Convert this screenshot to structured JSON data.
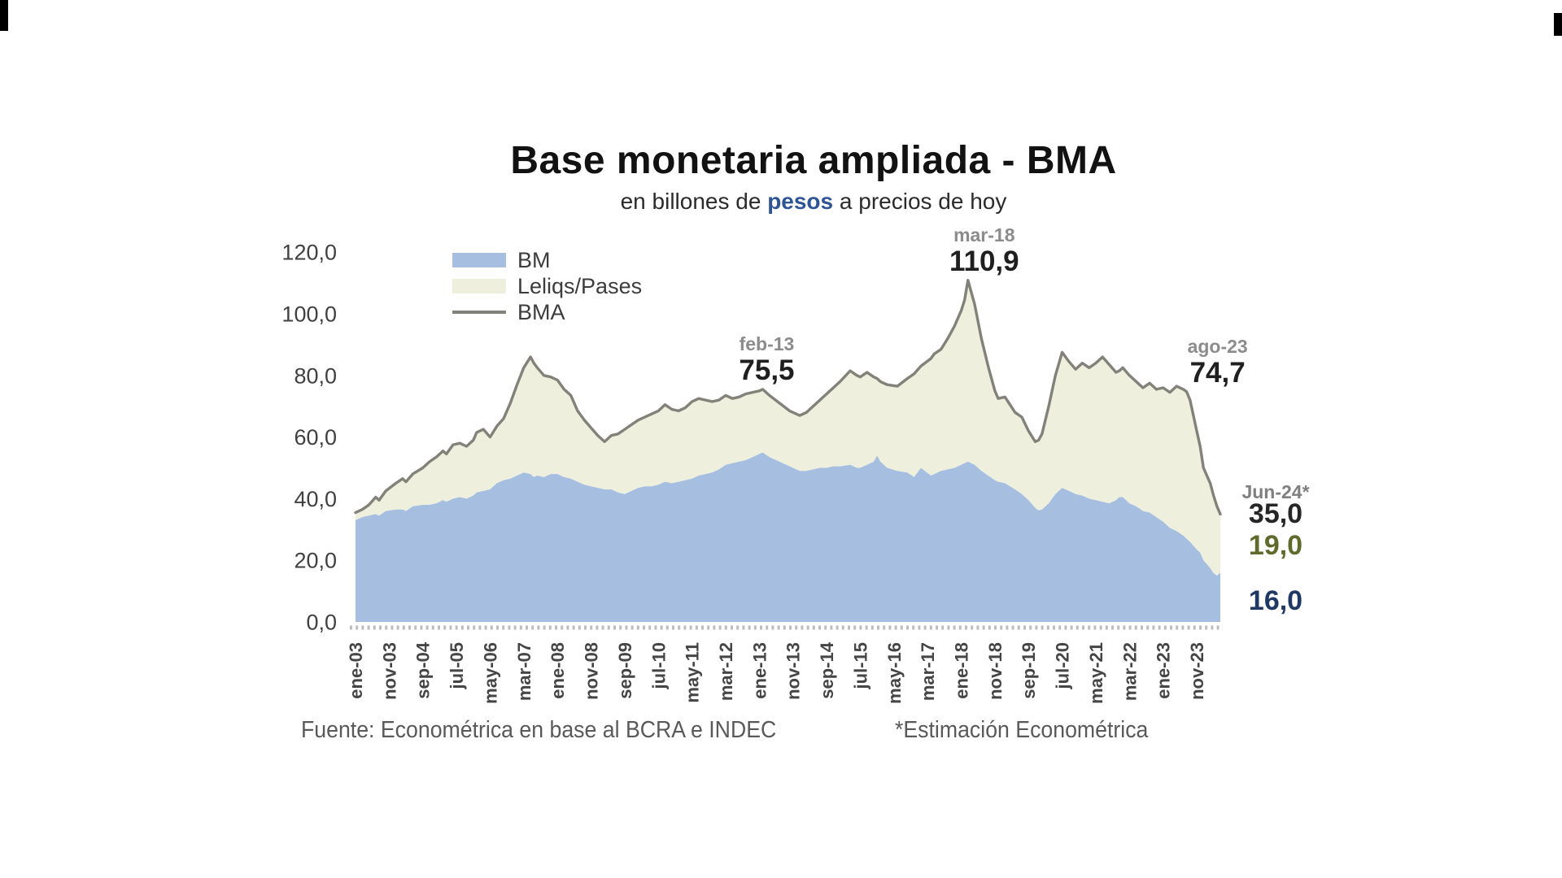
{
  "title": "Base monetaria ampliada - BMA",
  "subtitle": {
    "prefix": "en billones de ",
    "highlight": "pesos",
    "suffix": " a precios de hoy"
  },
  "legend": [
    {
      "label": "BM",
      "type": "area",
      "color": "#a6bfe1"
    },
    {
      "label": "Leliqs/Pases",
      "type": "area",
      "color": "#eef0dd"
    },
    {
      "label": "BMA",
      "type": "line",
      "color": "#82827a"
    }
  ],
  "footer": {
    "source": "Fuente: Econométrica en base al BCRA e INDEC",
    "estimation_note": "*Estimación Econométrica"
  },
  "chart_data": {
    "type": "area",
    "stacked": true,
    "title": "Base monetaria ampliada - BMA",
    "subtitle": "en billones de pesos a precios de hoy",
    "ylabel": "billones de pesos a precios de hoy",
    "ylim": [
      0,
      120
    ],
    "ytick_step": 20,
    "ytick_labels": [
      "0,0",
      "20,0",
      "40,0",
      "60,0",
      "80,0",
      "100,0",
      "120,0"
    ],
    "xtick_labels": [
      "ene-03",
      "nov-03",
      "sep-04",
      "jul-05",
      "may-06",
      "mar-07",
      "ene-08",
      "nov-08",
      "sep-09",
      "jul-10",
      "may-11",
      "mar-12",
      "ene-13",
      "nov-13",
      "sep-14",
      "jul-15",
      "may-16",
      "mar-17",
      "ene-18",
      "nov-18",
      "sep-19",
      "jul-20",
      "may-21",
      "mar-22",
      "ene-23",
      "nov-23"
    ],
    "x_months_per_tick": 10,
    "x_month_range": [
      0,
      257
    ],
    "series_names": [
      "BM",
      "Leliqs/Pases",
      "BMA"
    ],
    "points_format": [
      "month_index_from_ene03",
      "BMA_total",
      "BM"
    ],
    "points": [
      [
        0,
        35.5,
        33
      ],
      [
        2,
        36.5,
        34
      ],
      [
        4,
        38,
        34.5
      ],
      [
        6,
        40.5,
        35
      ],
      [
        7,
        39.5,
        34.5
      ],
      [
        9,
        42.5,
        36
      ],
      [
        12,
        45,
        36.5
      ],
      [
        14,
        46.5,
        36.5
      ],
      [
        15,
        45.5,
        36
      ],
      [
        17,
        48,
        37.5
      ],
      [
        20,
        50,
        38
      ],
      [
        22,
        52,
        38
      ],
      [
        24,
        53.5,
        38.5
      ],
      [
        26,
        55.5,
        39.5
      ],
      [
        27,
        54.5,
        39
      ],
      [
        29,
        57.5,
        40
      ],
      [
        31,
        58,
        40.5
      ],
      [
        33,
        57,
        40
      ],
      [
        35,
        59,
        41
      ],
      [
        36,
        61.5,
        42
      ],
      [
        38,
        62.5,
        42.5
      ],
      [
        40,
        60,
        43
      ],
      [
        42,
        63.5,
        45
      ],
      [
        44,
        66,
        46
      ],
      [
        46,
        71,
        46.5
      ],
      [
        48,
        77,
        47.5
      ],
      [
        50,
        82.5,
        48.5
      ],
      [
        52,
        86,
        48
      ],
      [
        53,
        84,
        47
      ],
      [
        54,
        82.5,
        47.5
      ],
      [
        56,
        80,
        47
      ],
      [
        58,
        79.5,
        48
      ],
      [
        60,
        78.5,
        48
      ],
      [
        62,
        75.5,
        47
      ],
      [
        64,
        73.5,
        46.5
      ],
      [
        66,
        68.5,
        45.5
      ],
      [
        68,
        65.5,
        44.5
      ],
      [
        70,
        63,
        44
      ],
      [
        72,
        60.5,
        43.5
      ],
      [
        74,
        58.5,
        43
      ],
      [
        76,
        60.5,
        43
      ],
      [
        78,
        61,
        42
      ],
      [
        80,
        62.5,
        41.5
      ],
      [
        82,
        64,
        42.5
      ],
      [
        84,
        65.5,
        43.5
      ],
      [
        86,
        66.5,
        44
      ],
      [
        88,
        67.5,
        44
      ],
      [
        90,
        68.5,
        44.5
      ],
      [
        92,
        70.5,
        45.5
      ],
      [
        94,
        69,
        45
      ],
      [
        96,
        68.5,
        45.5
      ],
      [
        98,
        69.5,
        46
      ],
      [
        100,
        71.5,
        46.5
      ],
      [
        102,
        72.5,
        47.5
      ],
      [
        104,
        72,
        48
      ],
      [
        106,
        71.5,
        48.5
      ],
      [
        108,
        72,
        49.5
      ],
      [
        110,
        73.5,
        51
      ],
      [
        112,
        72.5,
        51.5
      ],
      [
        114,
        73,
        52
      ],
      [
        116,
        74,
        52.5
      ],
      [
        118,
        74.5,
        53.5
      ],
      [
        120,
        75,
        54.5
      ],
      [
        121,
        75.5,
        55
      ],
      [
        123,
        73.5,
        53.5
      ],
      [
        126,
        71,
        52
      ],
      [
        129,
        68.5,
        50.5
      ],
      [
        132,
        67,
        49
      ],
      [
        134,
        68,
        49
      ],
      [
        136,
        70,
        49.5
      ],
      [
        138,
        72,
        50
      ],
      [
        140,
        74,
        50
      ],
      [
        142,
        76,
        50.5
      ],
      [
        144,
        78,
        50.5
      ],
      [
        147,
        81.5,
        51
      ],
      [
        149,
        80,
        50
      ],
      [
        150,
        79.5,
        50
      ],
      [
        152,
        81,
        51
      ],
      [
        154,
        79.5,
        52
      ],
      [
        155,
        79,
        54
      ],
      [
        156,
        78,
        52
      ],
      [
        158,
        77,
        50
      ],
      [
        161,
        76.5,
        49
      ],
      [
        164,
        79,
        48.5
      ],
      [
        166,
        80.5,
        47
      ],
      [
        168,
        83,
        50
      ],
      [
        171,
        85.5,
        47.5
      ],
      [
        172,
        87,
        48
      ],
      [
        174,
        88.5,
        49
      ],
      [
        176,
        92,
        49.5
      ],
      [
        178,
        96,
        50
      ],
      [
        180,
        101,
        51
      ],
      [
        181,
        104.5,
        51.5
      ],
      [
        182,
        110.9,
        52
      ],
      [
        183,
        107,
        51.5
      ],
      [
        184,
        103,
        51
      ],
      [
        186,
        92,
        49
      ],
      [
        188,
        83,
        47.5
      ],
      [
        190,
        75,
        46
      ],
      [
        191,
        72.5,
        45.5
      ],
      [
        193,
        73,
        45
      ],
      [
        196,
        68,
        43
      ],
      [
        198,
        66.5,
        41.5
      ],
      [
        200,
        62,
        39.5
      ],
      [
        202,
        58.5,
        37
      ],
      [
        203,
        59,
        36.2
      ],
      [
        204,
        61,
        36.5
      ],
      [
        206,
        70,
        38.5
      ],
      [
        208,
        80,
        41.5
      ],
      [
        210,
        87.5,
        43.5
      ],
      [
        212,
        84.5,
        42.5
      ],
      [
        214,
        82,
        41.5
      ],
      [
        216,
        84,
        41
      ],
      [
        218,
        82.5,
        40
      ],
      [
        220,
        84,
        39.5
      ],
      [
        222,
        86,
        39
      ],
      [
        224,
        83.5,
        38.5
      ],
      [
        226,
        81,
        39.5
      ],
      [
        227,
        81.5,
        40.5
      ],
      [
        228,
        82.5,
        40.5
      ],
      [
        230,
        80,
        38.5
      ],
      [
        232,
        78,
        37.5
      ],
      [
        234,
        76,
        36
      ],
      [
        236,
        77.5,
        35.5
      ],
      [
        238,
        75.5,
        34
      ],
      [
        240,
        76,
        32.5
      ],
      [
        242,
        74.5,
        30.5
      ],
      [
        244,
        76.5,
        29.5
      ],
      [
        246,
        75.5,
        28
      ],
      [
        247,
        74.7,
        27
      ],
      [
        248,
        72,
        26
      ],
      [
        250,
        62,
        23.5
      ],
      [
        251,
        57,
        22.5
      ],
      [
        252,
        50,
        20
      ],
      [
        254,
        45,
        17.5
      ],
      [
        255,
        41,
        15.8
      ],
      [
        256,
        37.5,
        15
      ],
      [
        257,
        35,
        16
      ]
    ],
    "annotations": [
      {
        "date": "feb-13",
        "value": "75,5",
        "month": 121,
        "y": 75.5
      },
      {
        "date": "mar-18",
        "value": "110,9",
        "month": 182,
        "y": 110.9
      },
      {
        "date": "ago-23",
        "value": "74,7",
        "month": 247,
        "y": 74.7
      }
    ],
    "end_labels": {
      "date": "Jun-24*",
      "bma": "35,0",
      "leliqs": "19,0",
      "bm": "16,0"
    },
    "colors": {
      "bm": "#a6bfe1",
      "leliqs": "#eef0dd",
      "bma_line": "#82827a",
      "end_bma_text": "#262626",
      "end_leliqs_text": "#5f6a2d",
      "end_bm_text": "#1f3864",
      "annotation_date_text": "#8c8c8c",
      "annotation_value_text": "#1f1f1f",
      "axis_text": "#404040",
      "subtitle_highlight": "#2f5496",
      "footer_text": "#595959"
    },
    "legend_position": "top-left-inside",
    "grid": false
  }
}
